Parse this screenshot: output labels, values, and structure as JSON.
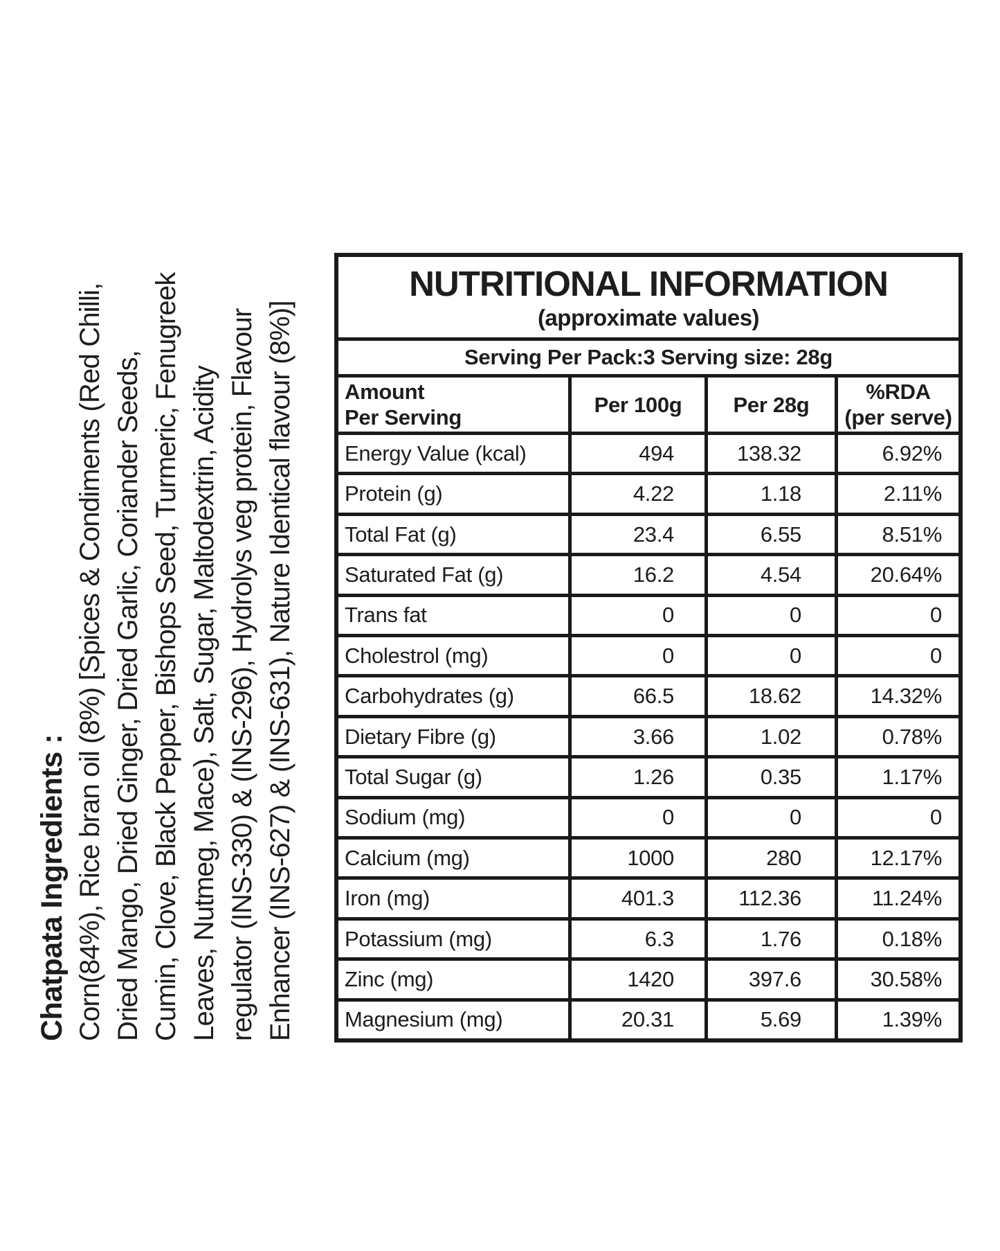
{
  "ingredients": {
    "heading": "Chatpata Ingredients :",
    "lines": [
      "Corn(84%), Rice bran oil (8%) [Spices & Condiments (Red Chilli,",
      "Dried Mango, Dried Ginger, Dried Garlic, Coriander Seeds,",
      "Cumin, Clove, Black Pepper, Bishops Seed, Turmeric, Fenugreek",
      "Leaves, Nutmeg, Mace), Salt, Sugar, Maltodextrin, Acidity",
      "regulator (INS-330) & (INS-296), Hydrolys veg protein, Flavour",
      "Enhancer (INS-627) & (INS-631), Nature Identical flavour (8%)]"
    ]
  },
  "table": {
    "title": "NUTRITIONAL INFORMATION",
    "subtitle": "(approximate values)",
    "serving_info": "Serving Per Pack:3 Serving size: 28g",
    "header": {
      "amount_line1": "Amount",
      "amount_line2": "Per Serving",
      "per_100g": "Per 100g",
      "per_28g": "Per 28g",
      "rda_line1": "%RDA",
      "rda_line2": "(per serve)"
    },
    "rows": [
      [
        "Energy Value (kcal)",
        "494",
        "138.32",
        "6.92%"
      ],
      [
        "Protein (g)",
        "4.22",
        "1.18",
        "2.11%"
      ],
      [
        "Total Fat (g)",
        "23.4",
        "6.55",
        "8.51%"
      ],
      [
        "Saturated Fat (g)",
        "16.2",
        "4.54",
        "20.64%"
      ],
      [
        "Trans fat",
        "0",
        "0",
        "0"
      ],
      [
        "Cholestrol (mg)",
        "0",
        "0",
        "0"
      ],
      [
        "Carbohydrates (g)",
        "66.5",
        "18.62",
        "14.32%"
      ],
      [
        "Dietary Fibre (g)",
        "3.66",
        "1.02",
        "0.78%"
      ],
      [
        "Total Sugar (g)",
        "1.26",
        "0.35",
        "1.17%"
      ],
      [
        "Sodium (mg)",
        "0",
        "0",
        "0"
      ],
      [
        "Calcium (mg)",
        "1000",
        "280",
        "12.17%"
      ],
      [
        "Iron (mg)",
        "401.3",
        "112.36",
        "11.24%"
      ],
      [
        "Potassium (mg)",
        "6.3",
        "1.76",
        "0.18%"
      ],
      [
        "Zinc (mg)",
        "1420",
        "397.6",
        "30.58%"
      ],
      [
        "Magnesium (mg)",
        "20.31",
        "5.69",
        "1.39%"
      ]
    ]
  },
  "colors": {
    "text": "#1d1d1b",
    "border": "#1a1a1a",
    "background": "#ffffff"
  }
}
